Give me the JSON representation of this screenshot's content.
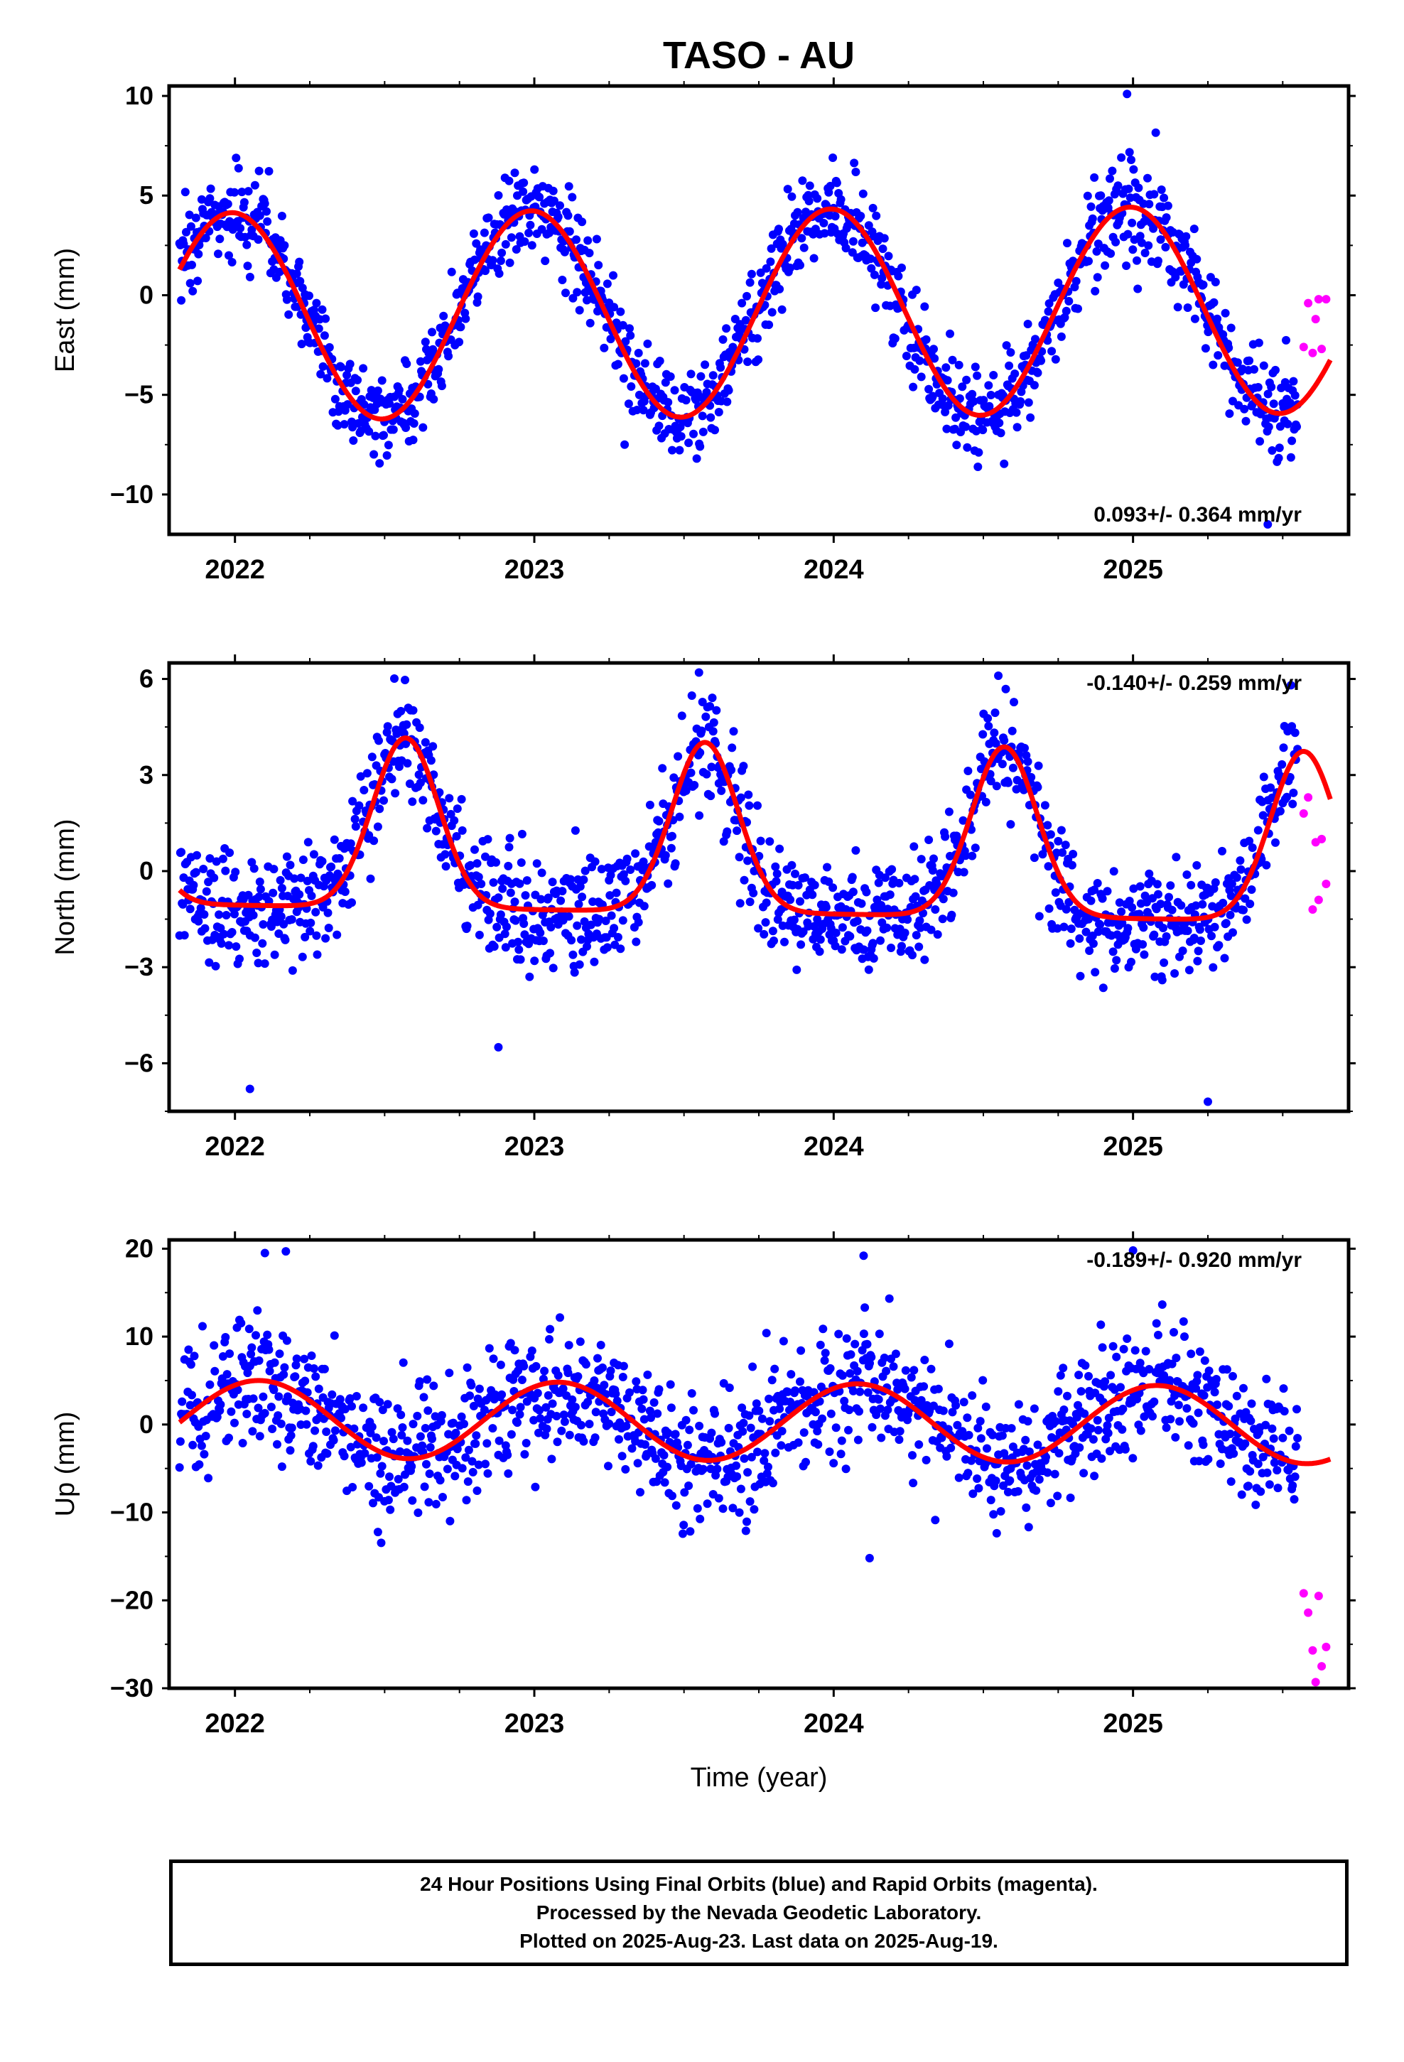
{
  "station_title": "TASO - AU",
  "xlabel": "Time (year)",
  "colors": {
    "final_orbits": "#0000ff",
    "rapid_orbits": "#ff00ff",
    "model_fit": "#ff0000",
    "frame": "#000000",
    "background": "#ffffff"
  },
  "footer": {
    "line1": "24 Hour Positions Using Final Orbits (blue) and Rapid Orbits (magenta).",
    "line2": "Processed by the Nevada Geodetic Laboratory.",
    "line3": "Plotted on 2025-Aug-23. Last data on 2025-Aug-19."
  },
  "chart_data": [
    {
      "type": "scatter",
      "component": "east",
      "ylabel": "East (mm)",
      "rate_label": "0.093+/- 0.364 mm/yr",
      "rate_position": "bottom-right",
      "xlim": [
        2021.78,
        2025.72
      ],
      "ylim": [
        -12,
        10.5
      ],
      "yticks": [
        10,
        5,
        0,
        -5,
        -10
      ],
      "tick_labels_y": [
        "10",
        "5",
        "0",
        "−5",
        "−10"
      ],
      "xticks": [
        2022,
        2023,
        2024,
        2025
      ],
      "tick_labels_x": [
        "2022",
        "2023",
        "2024",
        "2025"
      ],
      "model": {
        "mean": -0.9,
        "amplitude": 5.2,
        "peak_phase": 0.99,
        "trend": 0.093
      },
      "scatter_sigma": 1.2,
      "outliers": [
        [
          2024.98,
          10.1
        ],
        [
          2025.45,
          -11.5
        ]
      ],
      "rapid_orbits": {
        "x": [
          2025.57,
          2025.585,
          2025.6,
          2025.61,
          2025.62,
          2025.63,
          2025.645
        ],
        "y": [
          -2.6,
          -0.4,
          -2.9,
          -1.2,
          -0.2,
          -2.7,
          -0.2
        ]
      }
    },
    {
      "type": "scatter",
      "component": "north",
      "ylabel": "North (mm)",
      "rate_label": "-0.140+/- 0.259 mm/yr",
      "rate_position": "top-right",
      "xlim": [
        2021.78,
        2025.72
      ],
      "ylim": [
        -7.5,
        6.5
      ],
      "yticks": [
        6,
        3,
        0,
        -3,
        -6
      ],
      "tick_labels_y": [
        "6",
        "3",
        "0",
        "−3",
        "−6"
      ],
      "xticks": [
        2022,
        2023,
        2024,
        2025
      ],
      "tick_labels_x": [
        "2022",
        "2023",
        "2024",
        "2025"
      ],
      "model": {
        "base": -1.3,
        "pulse_amplitude": 5.3,
        "pulse_center": 0.57,
        "pulse_width": 0.11,
        "trend": -0.14
      },
      "scatter_sigma": 0.9,
      "outliers": [
        [
          2022.05,
          -6.8
        ],
        [
          2022.88,
          -5.5
        ],
        [
          2025.25,
          -7.2
        ],
        [
          2023.55,
          6.2
        ],
        [
          2024.55,
          6.1
        ]
      ],
      "rapid_orbits": {
        "x": [
          2025.57,
          2025.585,
          2025.6,
          2025.61,
          2025.62,
          2025.63,
          2025.645
        ],
        "y": [
          1.8,
          2.3,
          -1.2,
          0.9,
          -0.9,
          1.0,
          -0.4
        ]
      }
    },
    {
      "type": "scatter",
      "component": "up",
      "ylabel": "Up (mm)",
      "rate_label": "-0.189+/- 0.920 mm/yr",
      "rate_position": "top-right",
      "xlim": [
        2021.78,
        2025.72
      ],
      "ylim": [
        -30,
        21
      ],
      "yticks": [
        20,
        10,
        0,
        -10,
        -20,
        -30
      ],
      "tick_labels_y": [
        "20",
        "10",
        "0",
        "−10",
        "−20",
        "−30"
      ],
      "xticks": [
        2022,
        2023,
        2024,
        2025
      ],
      "tick_labels_x": [
        "2022",
        "2023",
        "2024",
        "2025"
      ],
      "model": {
        "mean": 0.3,
        "amplitude": 4.4,
        "peak_phase": 0.08,
        "trend": -0.189
      },
      "scatter_sigma": 3.6,
      "outliers": [
        [
          2022.1,
          19.5
        ],
        [
          2022.17,
          19.7
        ],
        [
          2024.1,
          19.2
        ],
        [
          2024.12,
          -15.2
        ],
        [
          2025.0,
          19.8
        ]
      ],
      "rapid_orbits": {
        "x": [
          2025.57,
          2025.585,
          2025.6,
          2025.61,
          2025.62,
          2025.63,
          2025.645
        ],
        "y": [
          -19.2,
          -21.4,
          -25.7,
          -29.3,
          -19.5,
          -27.5,
          -25.3
        ]
      }
    }
  ]
}
